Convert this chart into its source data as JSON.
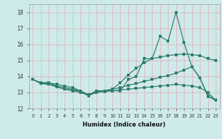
{
  "x": [
    0,
    1,
    2,
    3,
    4,
    5,
    6,
    7,
    8,
    9,
    10,
    11,
    12,
    13,
    14,
    15,
    16,
    17,
    18,
    19,
    20,
    21,
    22,
    23
  ],
  "line1": [
    13.8,
    13.6,
    13.6,
    13.5,
    13.4,
    13.3,
    13.1,
    12.8,
    13.1,
    13.1,
    13.1,
    13.1,
    13.8,
    14.0,
    15.1,
    15.1,
    16.5,
    16.2,
    18.0,
    16.1,
    14.6,
    13.9,
    12.8,
    12.5
  ],
  "line2": [
    13.8,
    13.6,
    13.6,
    13.4,
    13.3,
    13.2,
    13.1,
    12.85,
    13.1,
    13.1,
    13.2,
    13.6,
    14.1,
    14.5,
    14.85,
    15.1,
    15.2,
    15.3,
    15.35,
    15.4,
    15.35,
    15.3,
    15.1,
    15.0
  ],
  "line3": [
    13.8,
    13.6,
    13.5,
    13.35,
    13.2,
    13.15,
    13.05,
    12.8,
    13.05,
    13.1,
    13.2,
    13.3,
    13.45,
    13.55,
    13.7,
    13.8,
    13.95,
    14.05,
    14.2,
    14.4,
    14.6,
    13.9,
    12.75,
    12.5
  ],
  "line4": [
    13.8,
    13.55,
    13.5,
    13.35,
    13.2,
    13.1,
    13.0,
    12.8,
    13.0,
    13.05,
    13.1,
    13.15,
    13.2,
    13.25,
    13.3,
    13.35,
    13.4,
    13.45,
    13.5,
    13.45,
    13.4,
    13.3,
    13.0,
    12.5
  ],
  "bg_color": "#ceeaea",
  "grid_color": "#ddbcbc",
  "line_color": "#2e7d6e",
  "xlabel": "Humidex (Indice chaleur)",
  "xlim": [
    -0.5,
    23.5
  ],
  "ylim": [
    12,
    18.5
  ],
  "yticks": [
    12,
    13,
    14,
    15,
    16,
    17,
    18
  ],
  "xticks": [
    0,
    1,
    2,
    3,
    4,
    5,
    6,
    7,
    8,
    9,
    10,
    11,
    12,
    13,
    14,
    15,
    16,
    17,
    18,
    19,
    20,
    21,
    22,
    23
  ]
}
